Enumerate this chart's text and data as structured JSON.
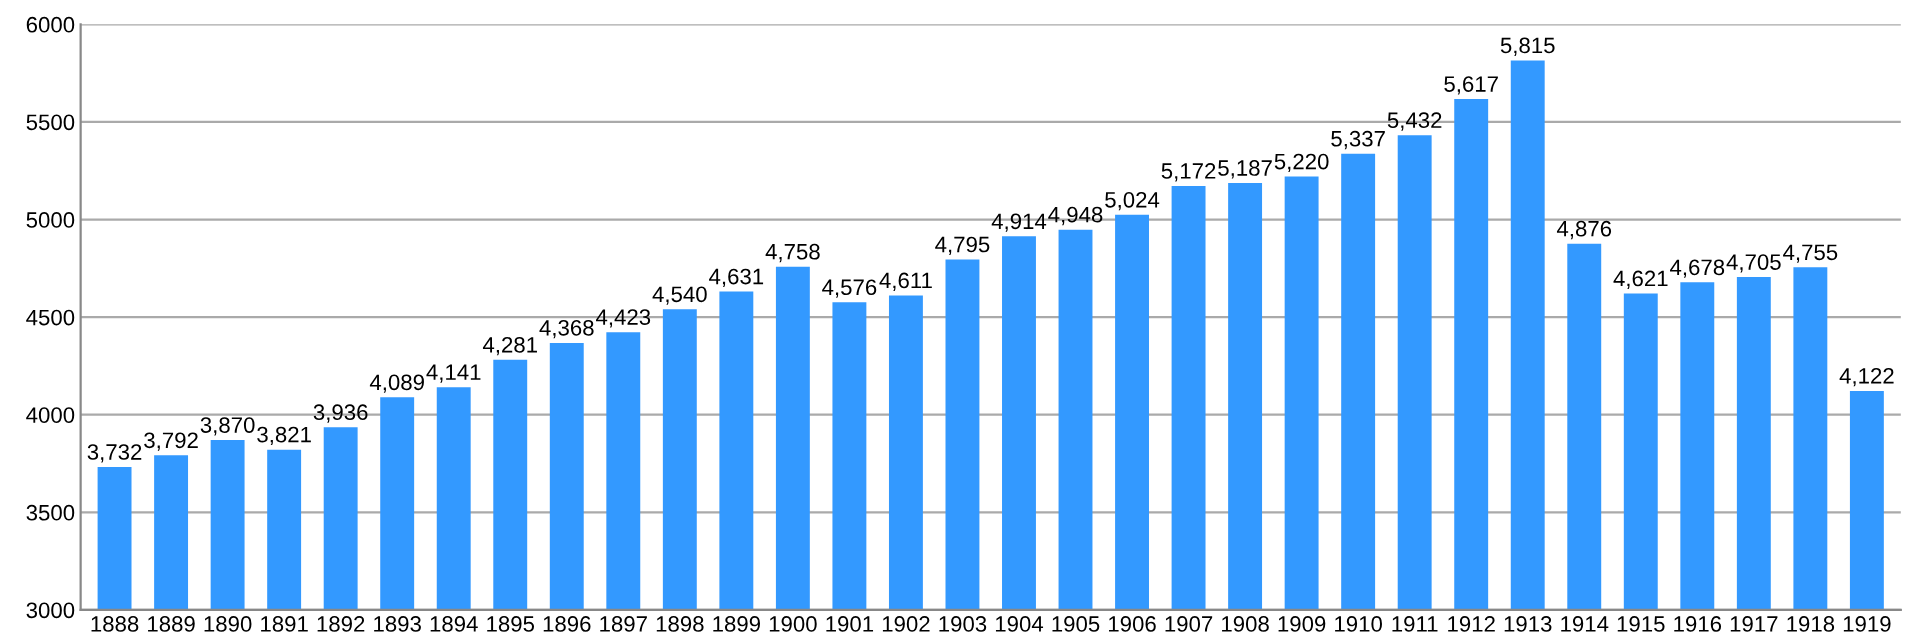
{
  "chart_data": {
    "type": "bar",
    "categories": [
      "1888",
      "1889",
      "1890",
      "1891",
      "1892",
      "1893",
      "1894",
      "1895",
      "1896",
      "1897",
      "1898",
      "1899",
      "1900",
      "1901",
      "1902",
      "1903",
      "1904",
      "1905",
      "1906",
      "1907",
      "1908",
      "1909",
      "1910",
      "1911",
      "1912",
      "1913",
      "1914",
      "1915",
      "1916",
      "1917",
      "1918",
      "1919"
    ],
    "values": [
      3732,
      3792,
      3870,
      3821,
      3936,
      4089,
      4141,
      4281,
      4368,
      4423,
      4540,
      4631,
      4758,
      4576,
      4611,
      4795,
      4914,
      4948,
      5024,
      5172,
      5187,
      5220,
      5337,
      5432,
      5617,
      5815,
      4876,
      4621,
      4678,
      4705,
      4755,
      4122
    ],
    "value_labels": [
      "3,732",
      "3,792",
      "3,870",
      "3,821",
      "3,936",
      "4,089",
      "4,141",
      "4,281",
      "4,368",
      "4,423",
      "4,540",
      "4,631",
      "4,758",
      "4,576",
      "4,611",
      "4,795",
      "4,914",
      "4,948",
      "5,024",
      "5,172",
      "5,187",
      "5,220",
      "5,337",
      "5,432",
      "5,617",
      "5,815",
      "4,876",
      "4,621",
      "4,678",
      "4,705",
      "4,755",
      "4,122"
    ],
    "color": "#3399ff",
    "ylim": [
      3000,
      6000
    ],
    "yticks": [
      3000,
      3500,
      4000,
      4500,
      5000,
      5500,
      6000
    ],
    "grid": "y"
  }
}
